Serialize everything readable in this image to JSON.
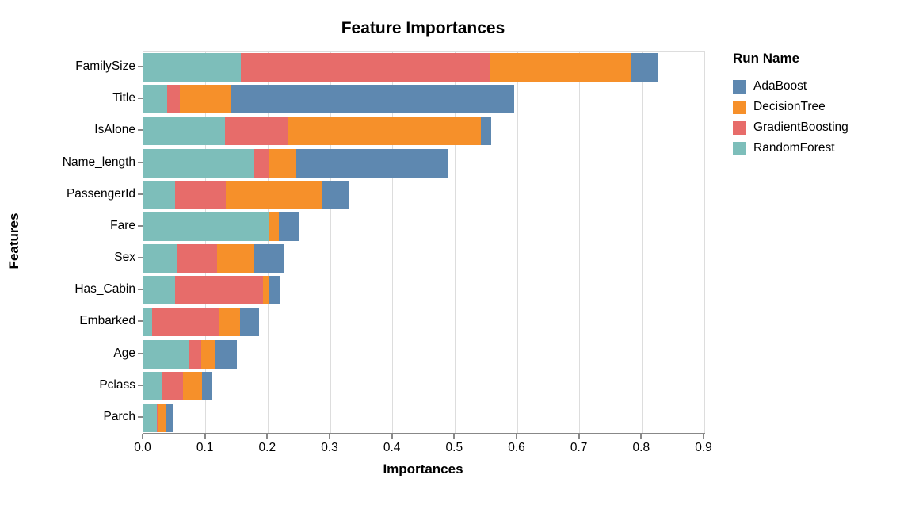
{
  "title": "Feature Importances",
  "x_axis": {
    "label": "Importances",
    "ticks": [
      "0.0",
      "0.1",
      "0.2",
      "0.3",
      "0.4",
      "0.5",
      "0.6",
      "0.7",
      "0.8",
      "0.9"
    ]
  },
  "y_axis": {
    "label": "Features"
  },
  "legend": {
    "title": "Run Name",
    "entries": [
      {
        "name": "AdaBoost",
        "color": "#5e88b0"
      },
      {
        "name": "DecisionTree",
        "color": "#f6902a"
      },
      {
        "name": "GradientBoosting",
        "color": "#e76c6a"
      },
      {
        "name": "RandomForest",
        "color": "#7dbeba"
      }
    ]
  },
  "chart_data": {
    "type": "bar",
    "orientation": "horizontal",
    "stacked": true,
    "title": "Feature Importances",
    "xlabel": "Importances",
    "ylabel": "Features",
    "xlim": [
      0,
      0.9
    ],
    "grid": true,
    "legend_position": "right",
    "categories": [
      "FamilySize",
      "Title",
      "IsAlone",
      "Name_length",
      "PassengerId",
      "Fare",
      "Sex",
      "Has_Cabin",
      "Embarked",
      "Age",
      "Pclass",
      "Parch"
    ],
    "series": [
      {
        "name": "AdaBoost",
        "color": "#5e88b0",
        "values": [
          0.042,
          0.455,
          0.016,
          0.245,
          0.044,
          0.033,
          0.047,
          0.018,
          0.03,
          0.036,
          0.015,
          0.01
        ]
      },
      {
        "name": "DecisionTree",
        "color": "#f6902a",
        "values": [
          0.227,
          0.082,
          0.31,
          0.043,
          0.154,
          0.016,
          0.06,
          0.01,
          0.034,
          0.021,
          0.03,
          0.013
        ]
      },
      {
        "name": "GradientBoosting",
        "color": "#e76c6a",
        "values": [
          0.4,
          0.02,
          0.101,
          0.024,
          0.081,
          0.0,
          0.063,
          0.141,
          0.107,
          0.021,
          0.035,
          0.002
        ]
      },
      {
        "name": "RandomForest",
        "color": "#7dbeba",
        "values": [
          0.156,
          0.038,
          0.131,
          0.178,
          0.051,
          0.202,
          0.055,
          0.051,
          0.014,
          0.072,
          0.029,
          0.022
        ]
      }
    ],
    "stack_order": [
      "RandomForest",
      "GradientBoosting",
      "DecisionTree",
      "AdaBoost"
    ],
    "colors": {
      "axis_domain": "#888888",
      "gridline": "#dddddd",
      "text": "#000000"
    }
  }
}
